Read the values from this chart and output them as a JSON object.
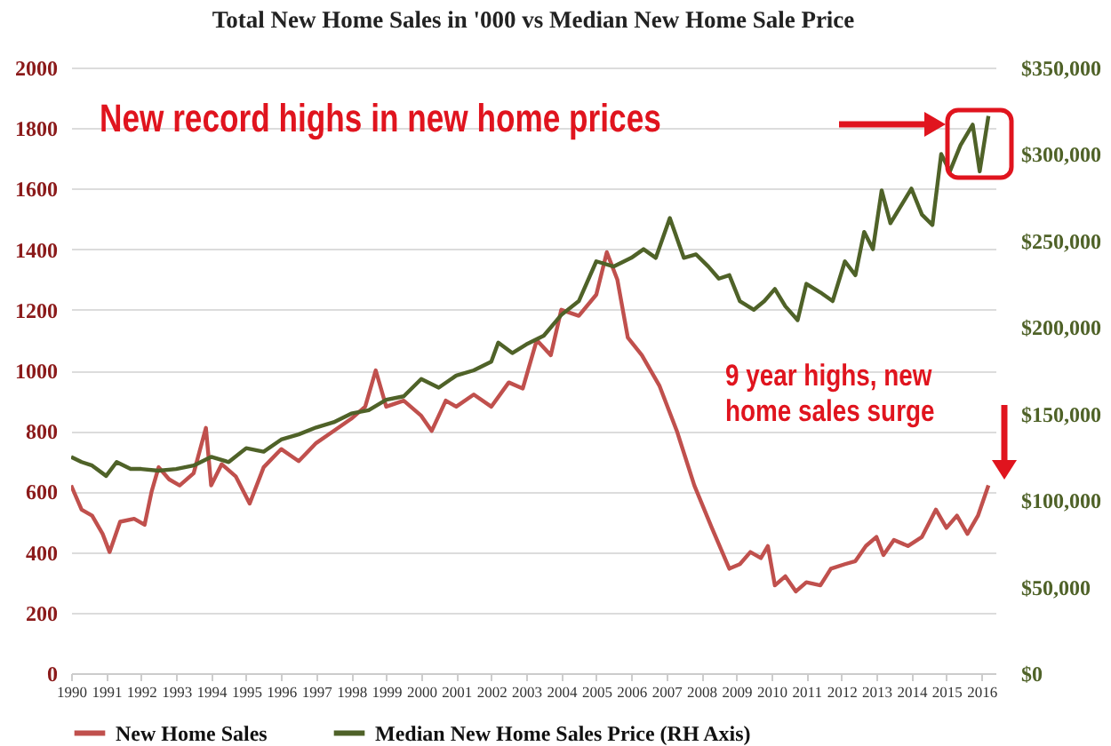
{
  "chart_data": {
    "type": "line",
    "title": "Total New Home Sales in '000 vs Median New Home Sale Price",
    "annotations": [
      "New record highs in new home prices",
      "9 year highs, new home sales surge"
    ],
    "xlim": [
      1990,
      2016.4
    ],
    "xticks": [
      1990,
      1991,
      1992,
      1993,
      1994,
      1995,
      1996,
      1997,
      1998,
      1999,
      2000,
      2001,
      2002,
      2003,
      2004,
      2005,
      2006,
      2007,
      2008,
      2009,
      2010,
      2011,
      2012,
      2013,
      2014,
      2015,
      2016
    ],
    "ylim": [
      0,
      2000
    ],
    "yticks": [
      0,
      200,
      400,
      600,
      800,
      1000,
      1200,
      1400,
      1600,
      1800,
      2000
    ],
    "y2lim": [
      0,
      350000
    ],
    "y2ticks": [
      {
        "value": 0,
        "label": "$0"
      },
      {
        "value": 50000,
        "label": "$50,000"
      },
      {
        "value": 100000,
        "label": "$100,000"
      },
      {
        "value": 150000,
        "label": "$150,000"
      },
      {
        "value": 200000,
        "label": "$200,000"
      },
      {
        "value": 250000,
        "label": "$250,000"
      },
      {
        "value": 300000,
        "label": "$300,000"
      },
      {
        "value": 350000,
        "label": "$350,000"
      }
    ],
    "grid": "y",
    "legend": "bottom",
    "line_style": "solid",
    "series": [
      {
        "name": "New Home Sales",
        "color": "#c0504d",
        "x": [
          1990,
          1990.3,
          1990.6,
          1990.9,
          1991.1,
          1991.4,
          1991.8,
          1992.1,
          1992.3,
          1992.5,
          1992.8,
          1993.1,
          1993.5,
          1993.85,
          1994.0,
          1994.3,
          1994.7,
          1995.1,
          1995.5,
          1996.0,
          1996.5,
          1997.0,
          1997.5,
          1998.0,
          1998.4,
          1998.7,
          1999.0,
          1999.5,
          2000.0,
          2000.3,
          2000.7,
          2001.0,
          2001.5,
          2002.0,
          2002.5,
          2002.9,
          2003.3,
          2003.7,
          2004.0,
          2004.5,
          2005.0,
          2005.3,
          2005.6,
          2005.9,
          2006.3,
          2006.8,
          2007.3,
          2007.8,
          2008.3,
          2008.8,
          2009.1,
          2009.4,
          2009.7,
          2009.9,
          2010.1,
          2010.4,
          2010.7,
          2011.0,
          2011.4,
          2011.7,
          2012.1,
          2012.4,
          2012.7,
          2013.0,
          2013.2,
          2013.5,
          2013.9,
          2014.3,
          2014.7,
          2015.0,
          2015.3,
          2015.6,
          2015.9,
          2016.2
        ],
        "values": [
          620,
          540,
          520,
          460,
          400,
          500,
          510,
          490,
          600,
          680,
          640,
          620,
          660,
          810,
          620,
          690,
          650,
          560,
          680,
          740,
          700,
          760,
          800,
          840,
          880,
          1000,
          880,
          900,
          850,
          800,
          900,
          880,
          920,
          880,
          960,
          940,
          1100,
          1050,
          1200,
          1180,
          1250,
          1390,
          1300,
          1108,
          1050,
          950,
          800,
          620,
          480,
          345,
          360,
          400,
          380,
          420,
          290,
          320,
          270,
          300,
          290,
          345,
          360,
          370,
          420,
          450,
          390,
          440,
          420,
          450,
          540,
          480,
          520,
          460,
          520,
          620
        ]
      },
      {
        "name": "Median New Home Sales Price (RH Axis)",
        "color": "#4f6228",
        "axis": "y2",
        "x": [
          1990,
          1990.3,
          1990.6,
          1991.0,
          1991.3,
          1991.7,
          1992.0,
          1992.5,
          1993.0,
          1993.5,
          1994.0,
          1994.5,
          1995.0,
          1995.5,
          1996.0,
          1996.5,
          1997.0,
          1997.5,
          1998.0,
          1998.5,
          1999.0,
          1999.5,
          2000.0,
          2000.5,
          2001.0,
          2001.5,
          2002.0,
          2002.2,
          2002.6,
          2003.0,
          2003.5,
          2004.0,
          2004.5,
          2005.0,
          2005.5,
          2006.0,
          2006.35,
          2006.7,
          2007.1,
          2007.5,
          2007.85,
          2008.2,
          2008.5,
          2008.8,
          2009.1,
          2009.5,
          2009.8,
          2010.1,
          2010.4,
          2010.75,
          2011.0,
          2011.4,
          2011.75,
          2012.1,
          2012.4,
          2012.65,
          2012.9,
          2013.15,
          2013.4,
          2013.7,
          2014.0,
          2014.3,
          2014.6,
          2014.85,
          2015.1,
          2015.4,
          2015.75,
          2015.95,
          2016.2
        ],
        "values": [
          125000,
          122000,
          120000,
          114000,
          122000,
          118000,
          118000,
          117000,
          118000,
          120000,
          125000,
          122000,
          130000,
          128000,
          135000,
          138000,
          142000,
          145000,
          150000,
          152000,
          158000,
          160000,
          170000,
          165000,
          172000,
          175000,
          180000,
          191000,
          185000,
          190000,
          195000,
          207000,
          215000,
          238000,
          235000,
          240000,
          245000,
          240000,
          263000,
          240000,
          242000,
          235000,
          228000,
          230000,
          215000,
          210000,
          215000,
          222000,
          212000,
          204000,
          225000,
          220000,
          215000,
          238000,
          230000,
          255000,
          245000,
          279000,
          260000,
          270000,
          280000,
          265000,
          259000,
          300000,
          290000,
          305000,
          317000,
          290000,
          322000
        ]
      }
    ]
  }
}
